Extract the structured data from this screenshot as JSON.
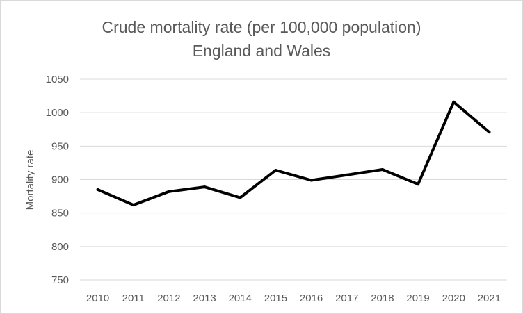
{
  "chart_data": {
    "type": "line",
    "title": "Crude mortality rate (per 100,000 population)",
    "subtitle": "England and Wales",
    "xlabel": "",
    "ylabel": "Mortality rate",
    "ylim": [
      750,
      1050
    ],
    "yticks": [
      750,
      800,
      850,
      900,
      950,
      1000,
      1050
    ],
    "x": [
      "2010",
      "2011",
      "2012",
      "2013",
      "2014",
      "2015",
      "2016",
      "2017",
      "2018",
      "2019",
      "2020",
      "2021"
    ],
    "series": [
      {
        "values": [
          885,
          862,
          882,
          889,
          873,
          914,
          899,
          907,
          915,
          893,
          1016,
          971
        ],
        "color": "#000000"
      }
    ],
    "grid": true,
    "legend": "none"
  }
}
